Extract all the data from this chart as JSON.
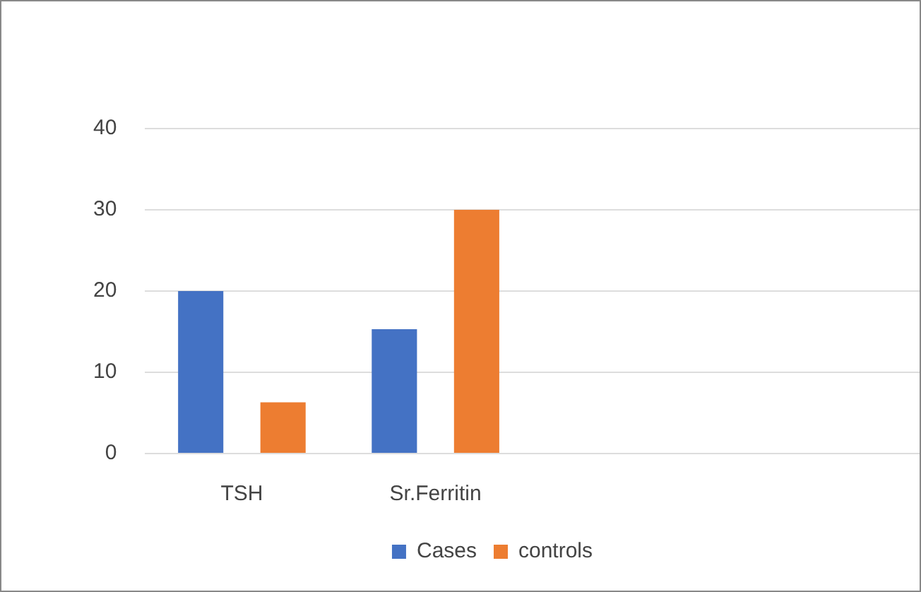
{
  "chart_data": {
    "type": "bar",
    "categories": [
      "TSH",
      "Sr.Ferritin",
      null,
      null
    ],
    "series": [
      {
        "name": "Cases",
        "color": "#4472c4",
        "values": [
          20,
          15.3,
          null,
          null
        ]
      },
      {
        "name": "controls",
        "color": "#ed7d31",
        "values": [
          6.3,
          30,
          null,
          null
        ]
      }
    ],
    "ylim": [
      0,
      40
    ],
    "yticks": [
      0,
      10,
      20,
      30,
      40
    ],
    "grid": "y",
    "legend": "bottom"
  }
}
